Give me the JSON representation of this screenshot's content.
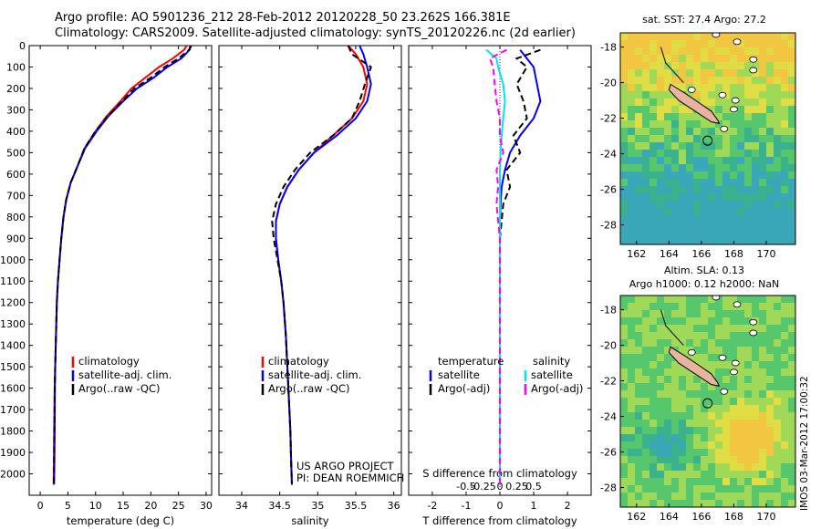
{
  "header": {
    "line1": "Argo profile: AO 5901236_212 28-Feb-2012 20120228_50 23.262S 166.381E",
    "line2": "Climatology: CARS2009. Satellite-adjusted climatology: synTS_20120226.nc (2d earlier)"
  },
  "colors": {
    "climatology": "#ff0000",
    "satellite": "#0000ff",
    "argo": "#000000",
    "sat_salinity": "#00e5ee",
    "argo_salinity": "#ff00ff",
    "island": "#e8b4a0"
  },
  "chart_data": [
    {
      "type": "line",
      "xlabel": "temperature (deg C)",
      "xlim": [
        -2,
        31
      ],
      "xticks": [
        0,
        5,
        10,
        15,
        20,
        25,
        30
      ],
      "ylim": [
        2100,
        0
      ],
      "yticks": [
        0,
        100,
        200,
        300,
        400,
        500,
        600,
        700,
        800,
        900,
        1000,
        1100,
        1200,
        1300,
        1400,
        1500,
        1600,
        1700,
        1800,
        1900,
        2000
      ],
      "legend": [
        "climatology",
        "satellite-adj. clim.",
        "Argo(..raw -QC)"
      ],
      "series": [
        {
          "name": "climatology",
          "color": "#ff0000",
          "x": [
            26.5,
            26,
            24,
            21.5,
            19,
            16.5,
            14.5,
            12,
            10,
            8,
            6.8,
            5.5,
            4.7,
            4.2,
            3.8,
            3.5,
            3.2,
            3.0,
            2.9,
            2.8,
            2.7,
            2.6,
            2.5,
            2.45,
            2.4
          ],
          "y": [
            0,
            20,
            60,
            100,
            150,
            200,
            260,
            330,
            400,
            480,
            560,
            640,
            720,
            800,
            900,
            1000,
            1100,
            1200,
            1300,
            1400,
            1500,
            1600,
            1800,
            1950,
            2050
          ]
        },
        {
          "name": "satellite-adj. clim.",
          "color": "#0000ff",
          "x": [
            27.3,
            27,
            25.5,
            23,
            20.5,
            17.5,
            15,
            12.3,
            10.2,
            8.1,
            6.8,
            5.5,
            4.7,
            4.2,
            3.8,
            3.5,
            3.2,
            3.0,
            2.9,
            2.8,
            2.7,
            2.65,
            2.6,
            2.55,
            2.5
          ],
          "y": [
            0,
            20,
            60,
            100,
            150,
            200,
            260,
            330,
            400,
            480,
            560,
            640,
            720,
            800,
            900,
            1000,
            1100,
            1200,
            1300,
            1400,
            1500,
            1600,
            1800,
            1950,
            2050
          ]
        },
        {
          "name": "Argo(..raw -QC)",
          "color": "#000000",
          "x": [
            27.2,
            26.9,
            25,
            22.5,
            20,
            17,
            14.8,
            12.2,
            10,
            8,
            6.8,
            5.5,
            4.7,
            4.2,
            3.8,
            3.5,
            3.2,
            3.0,
            2.9,
            2.8,
            2.7,
            2.62,
            2.55,
            2.5,
            2.45
          ],
          "y": [
            0,
            20,
            60,
            100,
            150,
            200,
            260,
            330,
            400,
            480,
            560,
            640,
            720,
            800,
            900,
            1000,
            1100,
            1200,
            1300,
            1400,
            1500,
            1600,
            1800,
            1950,
            2050
          ]
        }
      ]
    },
    {
      "type": "line",
      "xlabel": "salinity",
      "xlim": [
        33.7,
        36.1
      ],
      "xticks": [
        34,
        34.5,
        35,
        35.5,
        36
      ],
      "xticklabels": [
        "34",
        "34.5",
        "35",
        "35.5",
        "36"
      ],
      "ylim": [
        2100,
        0
      ],
      "legend": [
        "climatology",
        "satellite-adj. clim.",
        "Argo(..raw -QC)"
      ],
      "annotation": [
        "US ARGO PROJECT",
        "PI: DEAN ROEMMICH"
      ],
      "series": [
        {
          "name": "climatology",
          "color": "#ff0000",
          "x": [
            35.4,
            35.5,
            35.6,
            35.65,
            35.6,
            35.45,
            35.2,
            34.95,
            34.75,
            34.6,
            34.5,
            34.45,
            34.45,
            34.48,
            34.52,
            34.55,
            34.58,
            34.6,
            34.62,
            34.64,
            34.65,
            34.66
          ],
          "y": [
            0,
            40,
            100,
            180,
            260,
            340,
            420,
            500,
            580,
            660,
            740,
            820,
            900,
            1000,
            1100,
            1200,
            1350,
            1500,
            1650,
            1800,
            1950,
            2050
          ]
        },
        {
          "name": "satellite-adj. clim.",
          "color": "#0000ff",
          "x": [
            35.55,
            35.6,
            35.65,
            35.7,
            35.65,
            35.5,
            35.25,
            34.95,
            34.75,
            34.6,
            34.5,
            34.45,
            34.45,
            34.48,
            34.52,
            34.55,
            34.58,
            34.6,
            34.62,
            34.64,
            34.65,
            34.66
          ],
          "y": [
            0,
            40,
            100,
            180,
            260,
            340,
            420,
            500,
            580,
            660,
            740,
            820,
            900,
            1000,
            1100,
            1200,
            1350,
            1500,
            1650,
            1800,
            1950,
            2050
          ]
        },
        {
          "name": "Argo(..raw -QC)",
          "color": "#000000",
          "x": [
            35.4,
            35.45,
            35.7,
            35.62,
            35.55,
            35.45,
            35.2,
            34.9,
            34.7,
            34.55,
            34.45,
            34.4,
            34.42,
            34.47,
            34.52,
            34.55,
            34.58,
            34.6,
            34.62,
            34.64,
            34.65,
            34.66
          ],
          "y": [
            0,
            40,
            100,
            180,
            260,
            340,
            420,
            500,
            580,
            660,
            740,
            820,
            900,
            1000,
            1100,
            1200,
            1350,
            1500,
            1650,
            1800,
            1950,
            2050
          ]
        }
      ]
    },
    {
      "type": "line",
      "xlabel": "T difference from climatology",
      "x2label": "S difference from climatology",
      "xlim": [
        -2.7,
        2.7
      ],
      "xticks": [
        -2,
        -1,
        0,
        1,
        2
      ],
      "x2ticklabels": [
        "-0.5",
        "-0.25",
        "0",
        "0.25",
        "0.5"
      ],
      "ylim": [
        2100,
        0
      ],
      "legend_left": {
        "title": "temperature",
        "entries": [
          "satellite",
          "Argo(-adj)"
        ]
      },
      "legend_right": {
        "title": "salinity",
        "entries": [
          "satellite",
          "Argo(-adj)"
        ]
      },
      "series": [
        {
          "name": "temperature satellite",
          "color": "#0000ff",
          "x": [
            0.6,
            0.8,
            1.0,
            1.1,
            1.2,
            1.0,
            0.6,
            0.3,
            0.15,
            0.05,
            0.02,
            0,
            0,
            0,
            0,
            0,
            0,
            0,
            0
          ],
          "y": [
            20,
            60,
            100,
            180,
            260,
            340,
            420,
            500,
            580,
            660,
            740,
            820,
            900,
            1000,
            1200,
            1400,
            1600,
            1800,
            2050
          ]
        },
        {
          "name": "temperature Argo(-adj)",
          "color": "#000000",
          "x": [
            1.2,
            0.5,
            0.8,
            0.5,
            0.7,
            0.8,
            0.4,
            0.6,
            0.2,
            0.3,
            0.1,
            0.05,
            0,
            0,
            0,
            0,
            0,
            0,
            0
          ],
          "y": [
            20,
            60,
            100,
            180,
            260,
            340,
            420,
            500,
            580,
            660,
            740,
            820,
            900,
            1000,
            1200,
            1400,
            1600,
            1800,
            2050
          ]
        },
        {
          "name": "salinity satellite",
          "color": "#00e5ee",
          "x": [
            -0.4,
            -0.1,
            -0.05,
            0.1,
            0.15,
            0.1,
            0.05,
            0.02,
            0,
            0,
            0,
            0,
            0,
            0,
            0,
            0,
            0,
            0,
            0
          ],
          "y": [
            20,
            60,
            100,
            180,
            260,
            340,
            420,
            500,
            580,
            660,
            740,
            820,
            900,
            1000,
            1200,
            1400,
            1600,
            1800,
            2050
          ]
        },
        {
          "name": "salinity Argo(-adj)",
          "color": "#ff00ff",
          "x": [
            0.2,
            -0.3,
            -0.2,
            -0.15,
            -0.1,
            0,
            0,
            0.1,
            -0.1,
            -0.05,
            -0.1,
            -0.05,
            0,
            0,
            0,
            0,
            0,
            0,
            0
          ],
          "y": [
            20,
            60,
            100,
            180,
            260,
            340,
            420,
            500,
            580,
            660,
            740,
            820,
            900,
            1000,
            1200,
            1400,
            1600,
            1800,
            2050
          ]
        }
      ]
    }
  ],
  "maps": {
    "top": {
      "title": "sat. SST: 27.4  Argo: 27.2",
      "xticks": [
        "162",
        "164",
        "166",
        "168",
        "170"
      ],
      "yticks": [
        "-18",
        "-20",
        "-22",
        "-24",
        "-26",
        "-28"
      ]
    },
    "bottom": {
      "title1": "Altim. SLA: 0.13",
      "title2": "Argo h1000: 0.12  h2000: NaN",
      "xticks": [
        "162",
        "164",
        "166",
        "168",
        "170"
      ],
      "yticks": [
        "-18",
        "-20",
        "-22",
        "-24",
        "-26",
        "-28"
      ]
    }
  },
  "side_text": "IMOS 03-Mar-2012 17:00:32"
}
